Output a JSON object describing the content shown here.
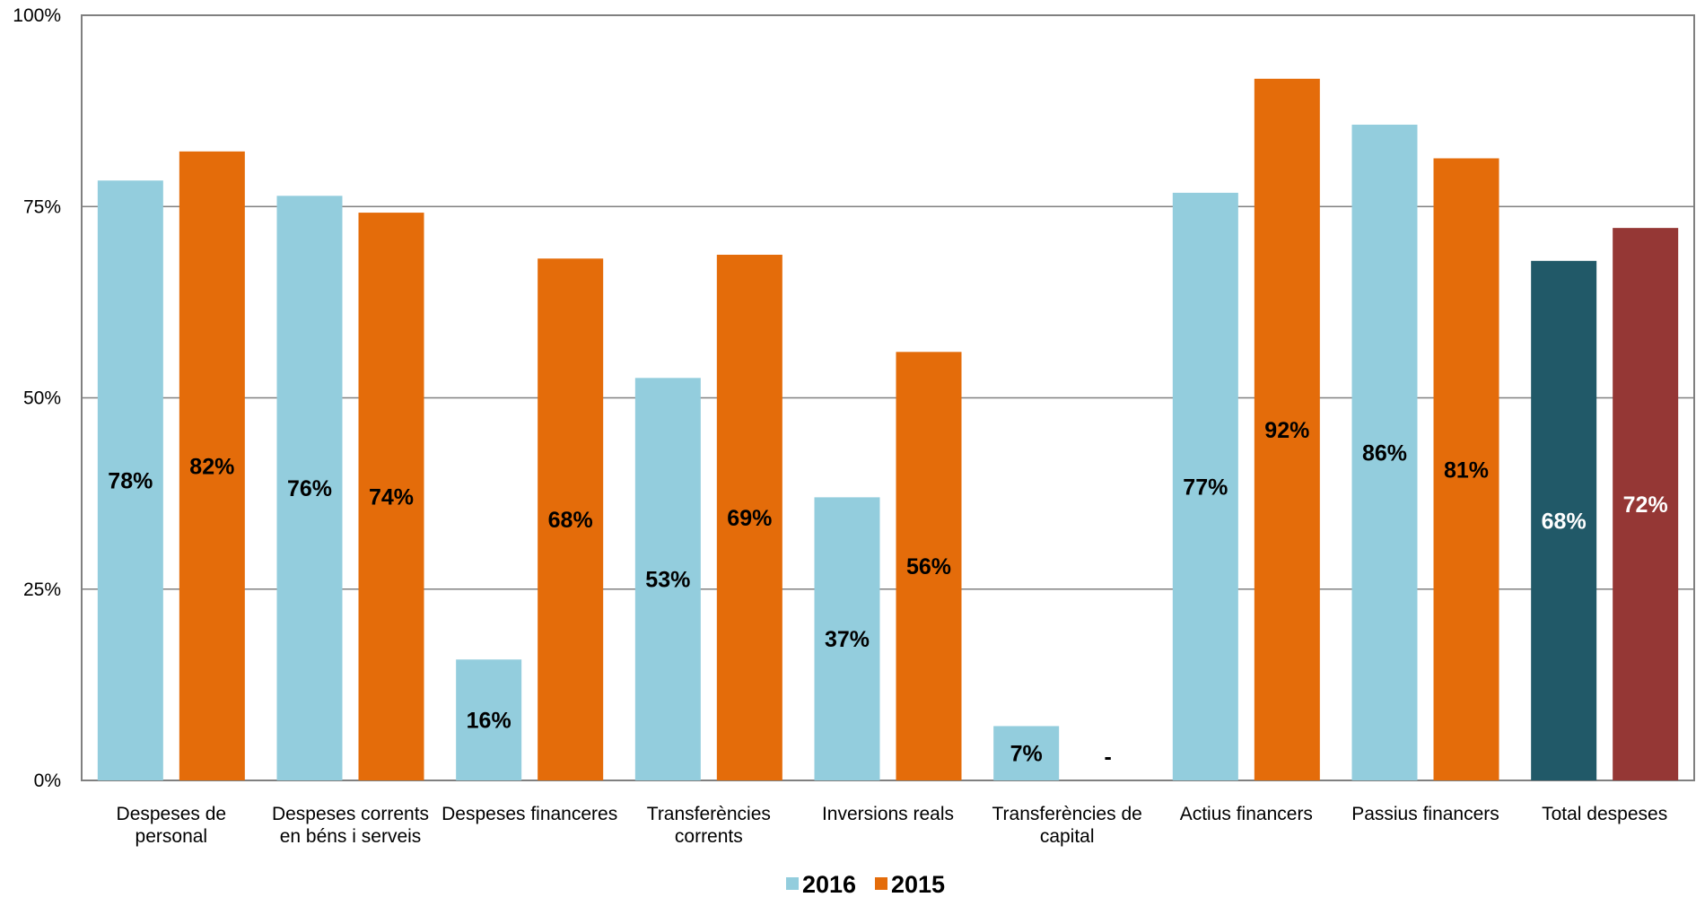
{
  "chart_data": {
    "type": "bar",
    "title": "",
    "xlabel": "",
    "ylabel": "",
    "ylim": [
      0,
      100
    ],
    "yticks": [
      "0%",
      "25%",
      "50%",
      "75%",
      "100%"
    ],
    "grid": true,
    "legend_position": "bottom",
    "categories": [
      [
        "Despeses de",
        "personal"
      ],
      [
        "Despeses corrents",
        "en béns i serveis"
      ],
      [
        "Despeses financeres"
      ],
      [
        "Transferències",
        "corrents"
      ],
      [
        "Inversions reals"
      ],
      [
        "Transferències de",
        "capital"
      ],
      [
        "Actius financers"
      ],
      [
        "Passius financers"
      ],
      [
        "Total despeses"
      ]
    ],
    "series": [
      {
        "name": "2016",
        "color": "#93CDDD",
        "values": [
          78.4,
          76.4,
          15.8,
          52.6,
          37.0,
          7.1,
          76.8,
          85.7,
          67.9
        ],
        "labels": [
          "78%",
          "76%",
          "16%",
          "53%",
          "37%",
          "7%",
          "77%",
          "86%",
          "68%"
        ],
        "point_colors": [
          "#93CDDD",
          "#93CDDD",
          "#93CDDD",
          "#93CDDD",
          "#93CDDD",
          "#93CDDD",
          "#93CDDD",
          "#93CDDD",
          "#215968"
        ],
        "label_colors": [
          "#000000",
          "#000000",
          "#000000",
          "#000000",
          "#000000",
          "#000000",
          "#000000",
          "#000000",
          "#FFFFFF"
        ]
      },
      {
        "name": "2015",
        "color": "#E46C0A",
        "values": [
          82.2,
          74.2,
          68.2,
          68.7,
          56.0,
          0,
          91.7,
          81.3,
          72.2
        ],
        "labels": [
          "82%",
          "74%",
          "68%",
          "69%",
          "56%",
          "-",
          "92%",
          "81%",
          "72%"
        ],
        "point_colors": [
          "#E46C0A",
          "#E46C0A",
          "#E46C0A",
          "#E46C0A",
          "#E46C0A",
          "#E46C0A",
          "#E46C0A",
          "#E46C0A",
          "#953735"
        ],
        "label_colors": [
          "#000000",
          "#000000",
          "#000000",
          "#000000",
          "#000000",
          "#000000",
          "#000000",
          "#000000",
          "#FFFFFF"
        ]
      }
    ]
  }
}
